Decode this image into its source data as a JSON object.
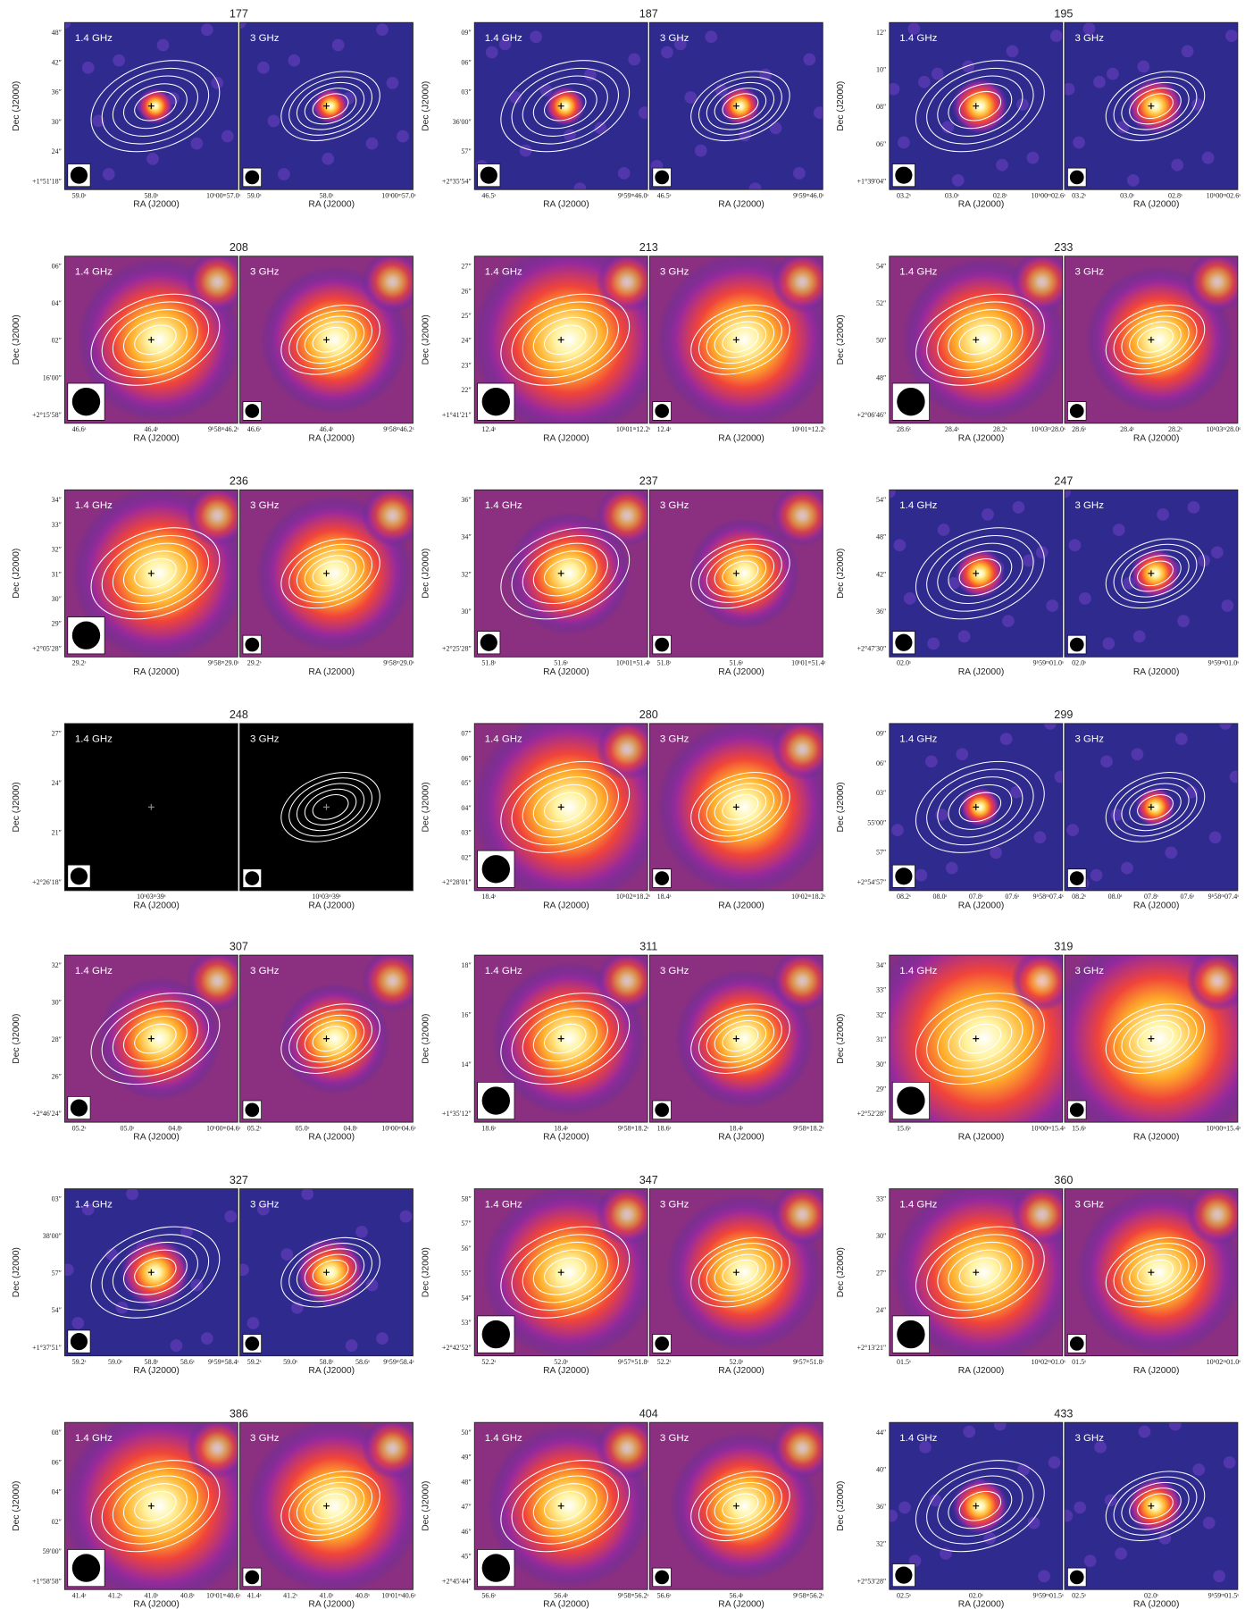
{
  "labels": {
    "band_low": "1.4 GHz",
    "band_high": "3 GHz",
    "dec_axis": "Dec (J2000)",
    "ra_axis": "RA (J2000)"
  },
  "panels": [
    {
      "id": "177",
      "dec_ticks": [
        "48″",
        "42″",
        "36″",
        "30″",
        "24″",
        "+1°51′18″"
      ],
      "ra_ticks": [
        "59.0ˢ",
        "58.0ˢ",
        "10ʰ00ᵐ57.0ˢ"
      ]
    },
    {
      "id": "187",
      "dec_ticks": [
        "09″",
        "06″",
        "03″",
        "36′00″",
        "57″",
        "+2°35′54″"
      ],
      "ra_ticks": [
        "46.5ˢ",
        "9ʰ59ᵐ46.0ˢ"
      ]
    },
    {
      "id": "195",
      "dec_ticks": [
        "12″",
        "10″",
        "08″",
        "06″",
        "+1°39′04″"
      ],
      "ra_ticks": [
        "03.2ˢ",
        "03.0ˢ",
        "02.8ˢ",
        "10ʰ00ᵐ02.6ˢ"
      ]
    },
    {
      "id": "208",
      "dec_ticks": [
        "06″",
        "04″",
        "02″",
        "16′00″",
        "+2°15′58″"
      ],
      "ra_ticks": [
        "46.6ˢ",
        "46.4ˢ",
        "9ʰ58ᵐ46.2ˢ"
      ]
    },
    {
      "id": "213",
      "dec_ticks": [
        "27″",
        "26″",
        "25″",
        "24″",
        "23″",
        "22″",
        "+1°41′21″"
      ],
      "ra_ticks": [
        "12.4ˢ",
        "10ʰ01ᵐ12.2ˢ"
      ]
    },
    {
      "id": "233",
      "dec_ticks": [
        "54″",
        "52″",
        "50″",
        "48″",
        "+2°06′46″"
      ],
      "ra_ticks": [
        "28.6ˢ",
        "28.4ˢ",
        "28.2ˢ",
        "10ʰ03ᵐ28.0ˢ"
      ]
    },
    {
      "id": "236",
      "dec_ticks": [
        "34″",
        "33″",
        "32″",
        "31″",
        "30″",
        "29″",
        "+2°05′28″"
      ],
      "ra_ticks": [
        "29.2ˢ",
        "9ʰ58ᵐ29.0ˢ"
      ]
    },
    {
      "id": "237",
      "dec_ticks": [
        "36″",
        "34″",
        "32″",
        "30″",
        "+2°25′28″"
      ],
      "ra_ticks": [
        "51.8ˢ",
        "51.6ˢ",
        "10ʰ01ᵐ51.4ˢ"
      ]
    },
    {
      "id": "247",
      "dec_ticks": [
        "54″",
        "48″",
        "42″",
        "36″",
        "+2°47′30″"
      ],
      "ra_ticks": [
        "02.0ˢ",
        "9ʰ59ᵐ01.0ˢ"
      ]
    },
    {
      "id": "248",
      "dec_ticks": [
        "27″",
        "24″",
        "21″",
        "+2°26′18″"
      ],
      "ra_ticks": [
        "10ʰ03ᵐ39ˢ"
      ]
    },
    {
      "id": "280",
      "dec_ticks": [
        "07″",
        "06″",
        "05″",
        "04″",
        "03″",
        "02″",
        "+2°28′01″"
      ],
      "ra_ticks": [
        "18.4ˢ",
        "10ʰ02ᵐ18.2ˢ"
      ]
    },
    {
      "id": "299",
      "dec_ticks": [
        "09″",
        "06″",
        "03″",
        "55′00″",
        "57″",
        "+2°54′57″"
      ],
      "ra_ticks": [
        "08.2ˢ",
        "08.0ˢ",
        "07.8ˢ",
        "07.6ˢ",
        "9ʰ58ᵐ07.4ˢ"
      ]
    },
    {
      "id": "307",
      "dec_ticks": [
        "32″",
        "30″",
        "28″",
        "26″",
        "+2°46′24″"
      ],
      "ra_ticks": [
        "05.2ˢ",
        "05.0ˢ",
        "04.8ˢ",
        "10ʰ00ᵐ04.6ˢ"
      ]
    },
    {
      "id": "311",
      "dec_ticks": [
        "18″",
        "16″",
        "14″",
        "+1°35′12″"
      ],
      "ra_ticks": [
        "18.6ˢ",
        "18.4ˢ",
        "9ʰ58ᵐ18.2ˢ"
      ]
    },
    {
      "id": "319",
      "dec_ticks": [
        "34″",
        "33″",
        "32″",
        "31″",
        "30″",
        "29″",
        "+2°52′28″"
      ],
      "ra_ticks": [
        "15.6ˢ",
        "10ʰ00ᵐ15.4ˢ"
      ]
    },
    {
      "id": "327",
      "dec_ticks": [
        "03″",
        "38′00″",
        "57″",
        "54″",
        "+1°37′51″"
      ],
      "ra_ticks": [
        "59.2ˢ",
        "59.0ˢ",
        "58.8ˢ",
        "58.6ˢ",
        "9ʰ59ᵐ58.4ˢ"
      ]
    },
    {
      "id": "347",
      "dec_ticks": [
        "58″",
        "57″",
        "56″",
        "55″",
        "54″",
        "53″",
        "+2°42′52″"
      ],
      "ra_ticks": [
        "52.2ˢ",
        "52.0ˢ",
        "9ʰ57ᵐ51.8ˢ"
      ]
    },
    {
      "id": "360",
      "dec_ticks": [
        "33″",
        "30″",
        "27″",
        "24″",
        "+2°13′21″"
      ],
      "ra_ticks": [
        "01.5ˢ",
        "10ʰ02ᵐ01.0ˢ"
      ]
    },
    {
      "id": "386",
      "dec_ticks": [
        "08″",
        "06″",
        "04″",
        "02″",
        "59′00″",
        "+1°58′58″"
      ],
      "ra_ticks": [
        "41.4ˢ",
        "41.2ˢ",
        "41.0ˢ",
        "40.8ˢ",
        "10ʰ01ᵐ40.6ˢ"
      ]
    },
    {
      "id": "404",
      "dec_ticks": [
        "50″",
        "49″",
        "48″",
        "47″",
        "46″",
        "45″",
        "+2°45′44″"
      ],
      "ra_ticks": [
        "56.6ˢ",
        "56.4ˢ",
        "9ʰ58ᵐ56.2ˢ"
      ]
    },
    {
      "id": "433",
      "dec_ticks": [
        "44″",
        "40″",
        "36″",
        "32″",
        "+2°53′28″"
      ],
      "ra_ticks": [
        "02.5ˢ",
        "02.0ˢ",
        "9ʰ59ᵐ01.5ˢ"
      ]
    }
  ]
}
